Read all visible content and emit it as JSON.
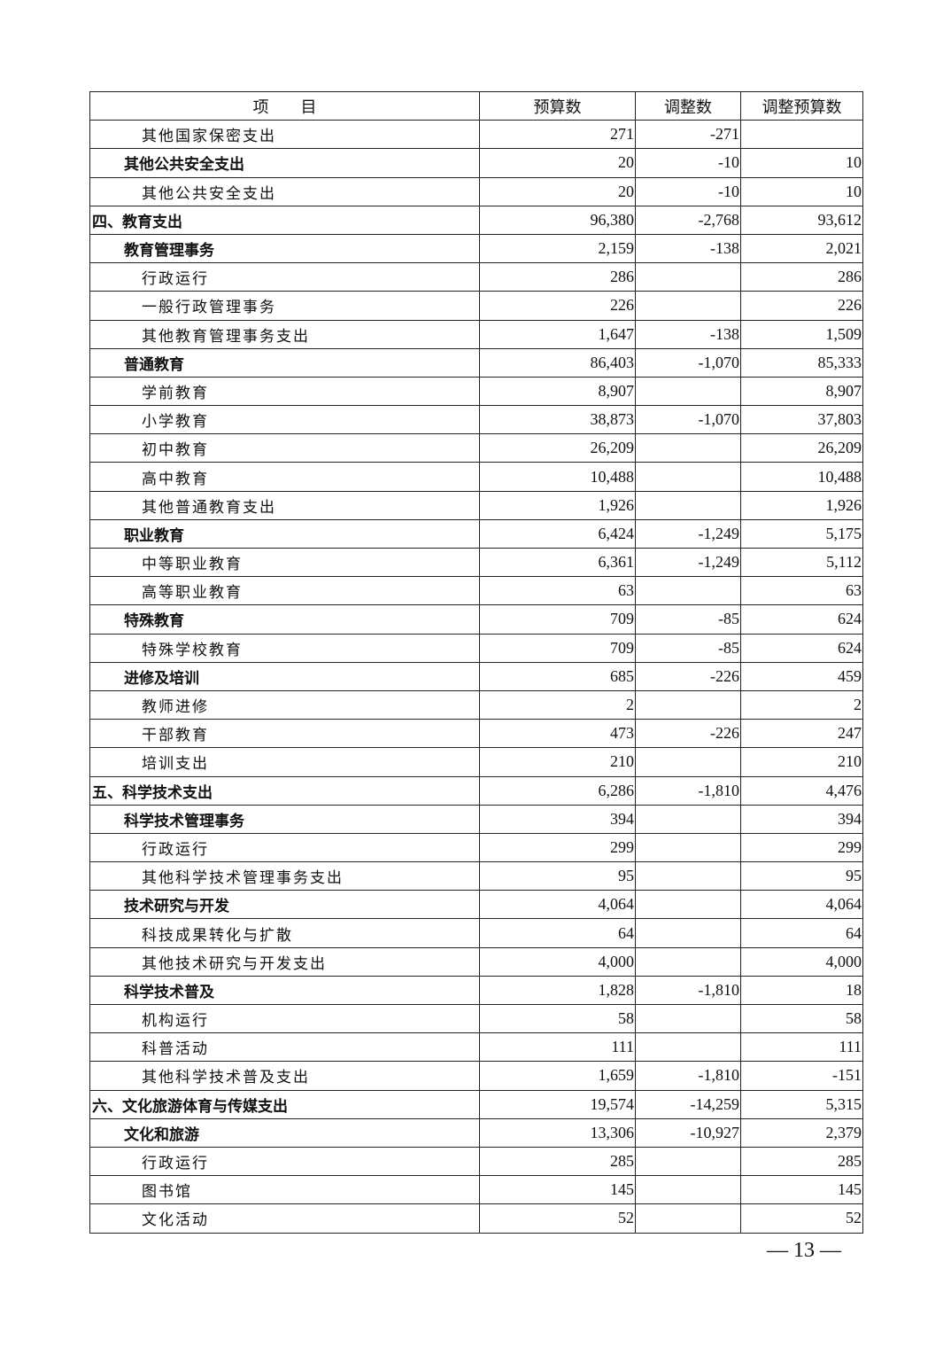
{
  "table": {
    "headers": {
      "item": "项　　目",
      "budget": "预算数",
      "adjust": "调整数",
      "adjusted": "调整预算数"
    },
    "rows": [
      {
        "name": "其他国家保密支出",
        "level": 2,
        "budget": "271",
        "adjust": "-271",
        "adjusted": ""
      },
      {
        "name": "其他公共安全支出",
        "level": 1,
        "budget": "20",
        "adjust": "-10",
        "adjusted": "10"
      },
      {
        "name": "其他公共安全支出",
        "level": 2,
        "budget": "20",
        "adjust": "-10",
        "adjusted": "10"
      },
      {
        "name": "四、教育支出",
        "level": 0,
        "budget": "96,380",
        "adjust": "-2,768",
        "adjusted": "93,612"
      },
      {
        "name": "教育管理事务",
        "level": 1,
        "budget": "2,159",
        "adjust": "-138",
        "adjusted": "2,021"
      },
      {
        "name": "行政运行",
        "level": 2,
        "budget": "286",
        "adjust": "",
        "adjusted": "286"
      },
      {
        "name": "一般行政管理事务",
        "level": 2,
        "budget": "226",
        "adjust": "",
        "adjusted": "226"
      },
      {
        "name": "其他教育管理事务支出",
        "level": 2,
        "budget": "1,647",
        "adjust": "-138",
        "adjusted": "1,509"
      },
      {
        "name": "普通教育",
        "level": 1,
        "budget": "86,403",
        "adjust": "-1,070",
        "adjusted": "85,333"
      },
      {
        "name": "学前教育",
        "level": 2,
        "budget": "8,907",
        "adjust": "",
        "adjusted": "8,907"
      },
      {
        "name": "小学教育",
        "level": 2,
        "budget": "38,873",
        "adjust": "-1,070",
        "adjusted": "37,803"
      },
      {
        "name": "初中教育",
        "level": 2,
        "budget": "26,209",
        "adjust": "",
        "adjusted": "26,209"
      },
      {
        "name": "高中教育",
        "level": 2,
        "budget": "10,488",
        "adjust": "",
        "adjusted": "10,488"
      },
      {
        "name": "其他普通教育支出",
        "level": 2,
        "budget": "1,926",
        "adjust": "",
        "adjusted": "1,926"
      },
      {
        "name": "职业教育",
        "level": 1,
        "budget": "6,424",
        "adjust": "-1,249",
        "adjusted": "5,175"
      },
      {
        "name": "中等职业教育",
        "level": 2,
        "budget": "6,361",
        "adjust": "-1,249",
        "adjusted": "5,112"
      },
      {
        "name": "高等职业教育",
        "level": 2,
        "budget": "63",
        "adjust": "",
        "adjusted": "63"
      },
      {
        "name": "特殊教育",
        "level": 1,
        "budget": "709",
        "adjust": "-85",
        "adjusted": "624"
      },
      {
        "name": "特殊学校教育",
        "level": 2,
        "budget": "709",
        "adjust": "-85",
        "adjusted": "624"
      },
      {
        "name": "进修及培训",
        "level": 1,
        "budget": "685",
        "adjust": "-226",
        "adjusted": "459"
      },
      {
        "name": "教师进修",
        "level": 2,
        "budget": "2",
        "adjust": "",
        "adjusted": "2"
      },
      {
        "name": "干部教育",
        "level": 2,
        "budget": "473",
        "adjust": "-226",
        "adjusted": "247"
      },
      {
        "name": "培训支出",
        "level": 2,
        "budget": "210",
        "adjust": "",
        "adjusted": "210"
      },
      {
        "name": "五、科学技术支出",
        "level": 0,
        "budget": "6,286",
        "adjust": "-1,810",
        "adjusted": "4,476"
      },
      {
        "name": "科学技术管理事务",
        "level": 1,
        "budget": "394",
        "adjust": "",
        "adjusted": "394"
      },
      {
        "name": "行政运行",
        "level": 2,
        "budget": "299",
        "adjust": "",
        "adjusted": "299"
      },
      {
        "name": "其他科学技术管理事务支出",
        "level": 2,
        "budget": "95",
        "adjust": "",
        "adjusted": "95"
      },
      {
        "name": "技术研究与开发",
        "level": 1,
        "budget": "4,064",
        "adjust": "",
        "adjusted": "4,064"
      },
      {
        "name": "科技成果转化与扩散",
        "level": 2,
        "budget": "64",
        "adjust": "",
        "adjusted": "64"
      },
      {
        "name": "其他技术研究与开发支出",
        "level": 2,
        "budget": "4,000",
        "adjust": "",
        "adjusted": "4,000"
      },
      {
        "name": "科学技术普及",
        "level": 1,
        "budget": "1,828",
        "adjust": "-1,810",
        "adjusted": "18"
      },
      {
        "name": "机构运行",
        "level": 2,
        "budget": "58",
        "adjust": "",
        "adjusted": "58"
      },
      {
        "name": "科普活动",
        "level": 2,
        "budget": "111",
        "adjust": "",
        "adjusted": "111"
      },
      {
        "name": "其他科学技术普及支出",
        "level": 2,
        "budget": "1,659",
        "adjust": "-1,810",
        "adjusted": "-151"
      },
      {
        "name": "六、文化旅游体育与传媒支出",
        "level": 0,
        "budget": "19,574",
        "adjust": "-14,259",
        "adjusted": "5,315"
      },
      {
        "name": "文化和旅游",
        "level": 1,
        "budget": "13,306",
        "adjust": "-10,927",
        "adjusted": "2,379"
      },
      {
        "name": "行政运行",
        "level": 2,
        "budget": "285",
        "adjust": "",
        "adjusted": "285"
      },
      {
        "name": "图书馆",
        "level": 2,
        "budget": "145",
        "adjust": "",
        "adjusted": "145"
      },
      {
        "name": "文化活动",
        "level": 2,
        "budget": "52",
        "adjust": "",
        "adjusted": "52"
      }
    ]
  },
  "page_number": "— 13 —"
}
